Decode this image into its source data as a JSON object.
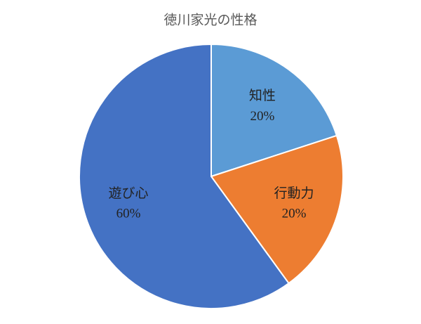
{
  "chart_data": {
    "type": "pie",
    "title": "徳川家光の性格",
    "categories": [
      "知性",
      "行動力",
      "遊び心"
    ],
    "values": [
      20,
      20,
      60
    ],
    "value_labels": [
      "20%",
      "20%",
      "60%"
    ],
    "colors": [
      "#5b9bd5",
      "#ed7d31",
      "#4472c4"
    ]
  }
}
